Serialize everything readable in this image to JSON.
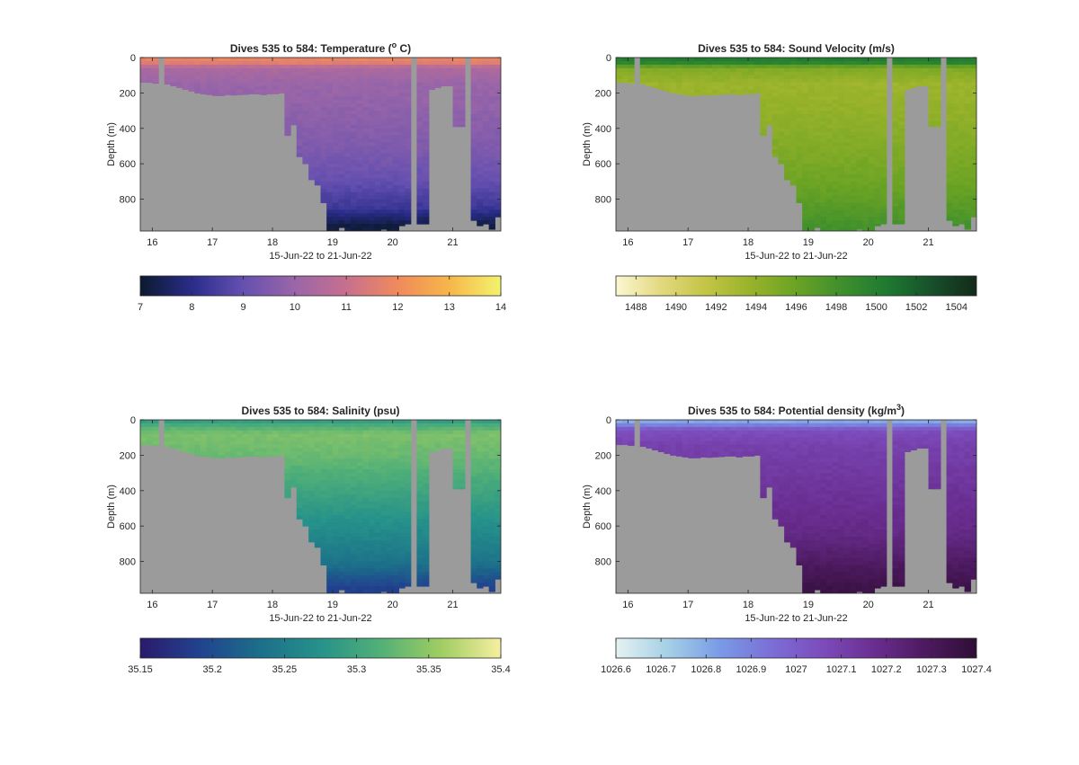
{
  "colors": {
    "land": "#9b9b9b",
    "axis": "#262626",
    "background": "#ffffff"
  },
  "chart_data": [
    {
      "type": "heatmap",
      "variable": "Temperature",
      "title": "Dives 535 to 584: Temperature (",
      "title_sup": "o",
      "title_end": " C)",
      "xlabel": "15-Jun-22 to 21-Jun-22",
      "ylabel": "Depth (m)",
      "xlim": [
        15.8,
        21.8
      ],
      "ylim": [
        0,
        980
      ],
      "y_reversed": true,
      "xticks": [
        16,
        17,
        18,
        19,
        20,
        21
      ],
      "yticks": [
        0,
        200,
        400,
        600,
        800
      ],
      "colorbar": {
        "min": 7,
        "max": 14,
        "ticks": [
          7,
          8,
          9,
          10,
          11,
          12,
          13,
          14
        ],
        "colormap": [
          "#0b1a2e",
          "#2a2c8a",
          "#6550b0",
          "#9a66a8",
          "#c76f8e",
          "#f08a5c",
          "#f7b64a",
          "#f3f36c"
        ]
      },
      "profile": [
        {
          "depth": 0,
          "value": 11.9
        },
        {
          "depth": 30,
          "value": 11.6
        },
        {
          "depth": 60,
          "value": 10.4
        },
        {
          "depth": 150,
          "value": 10.0
        },
        {
          "depth": 300,
          "value": 9.8
        },
        {
          "depth": 500,
          "value": 9.5
        },
        {
          "depth": 700,
          "value": 9.0
        },
        {
          "depth": 850,
          "value": 8.3
        },
        {
          "depth": 950,
          "value": 7.2
        }
      ]
    },
    {
      "type": "heatmap",
      "variable": "Sound Velocity",
      "title": "Dives 535 to 584: Sound Velocity (m/s)",
      "xlabel": "15-Jun-22 to 21-Jun-22",
      "ylabel": "Depth (m)",
      "xlim": [
        15.8,
        21.8
      ],
      "ylim": [
        0,
        980
      ],
      "y_reversed": true,
      "xticks": [
        16,
        17,
        18,
        19,
        20,
        21
      ],
      "yticks": [
        0,
        200,
        400,
        600,
        800
      ],
      "colorbar": {
        "min": 1487,
        "max": 1505,
        "ticks": [
          1488,
          1490,
          1492,
          1494,
          1496,
          1498,
          1500,
          1502,
          1504
        ],
        "colormap": [
          "#fbf7d0",
          "#e3d880",
          "#c2c545",
          "#98b22a",
          "#6aa324",
          "#3f8f2d",
          "#1f7a31",
          "#17502a",
          "#142a1a"
        ]
      },
      "profile": [
        {
          "depth": 0,
          "value": 1500.5
        },
        {
          "depth": 30,
          "value": 1499.5
        },
        {
          "depth": 60,
          "value": 1495.0
        },
        {
          "depth": 150,
          "value": 1493.5
        },
        {
          "depth": 300,
          "value": 1494.0
        },
        {
          "depth": 500,
          "value": 1494.8
        },
        {
          "depth": 700,
          "value": 1495.8
        },
        {
          "depth": 850,
          "value": 1497.0
        },
        {
          "depth": 950,
          "value": 1498.0
        }
      ]
    },
    {
      "type": "heatmap",
      "variable": "Salinity",
      "title": "Dives 535 to 584: Salinity (psu)",
      "xlabel": "15-Jun-22 to 21-Jun-22",
      "ylabel": "Depth (m)",
      "xlim": [
        15.8,
        21.8
      ],
      "ylim": [
        0,
        980
      ],
      "y_reversed": true,
      "xticks": [
        16,
        17,
        18,
        19,
        20,
        21
      ],
      "yticks": [
        0,
        200,
        400,
        600,
        800
      ],
      "colorbar": {
        "min": 35.15,
        "max": 35.4,
        "ticks": [
          35.15,
          35.2,
          35.25,
          35.3,
          35.35,
          35.4
        ],
        "tick_labels": [
          "35.15",
          "35.2",
          "35.25",
          "35.3",
          "35.35",
          "35.4"
        ],
        "colormap": [
          "#2a1a6c",
          "#21438f",
          "#1c6f8a",
          "#26928a",
          "#52b077",
          "#9fcd62",
          "#f6efa0"
        ]
      },
      "profile": [
        {
          "depth": 0,
          "value": 35.28
        },
        {
          "depth": 30,
          "value": 35.31
        },
        {
          "depth": 80,
          "value": 35.34
        },
        {
          "depth": 200,
          "value": 35.33
        },
        {
          "depth": 400,
          "value": 35.3
        },
        {
          "depth": 600,
          "value": 35.27
        },
        {
          "depth": 800,
          "value": 35.24
        },
        {
          "depth": 950,
          "value": 35.19
        }
      ]
    },
    {
      "type": "heatmap",
      "variable": "Potential density",
      "title": "Dives 535 to 584: Potential density (kg/m",
      "title_sup": "3",
      "title_end": ")",
      "xlabel": "15-Jun-22 to 21-Jun-22",
      "ylabel": "Depth (m)",
      "xlim": [
        15.8,
        21.8
      ],
      "ylim": [
        0,
        980
      ],
      "y_reversed": true,
      "xticks": [
        16,
        17,
        18,
        19,
        20,
        21
      ],
      "yticks": [
        0,
        200,
        400,
        600,
        800
      ],
      "colorbar": {
        "min": 1026.6,
        "max": 1027.4,
        "ticks": [
          1026.6,
          1026.7,
          1026.8,
          1026.9,
          1027,
          1027.1,
          1027.2,
          1027.3,
          1027.4
        ],
        "tick_labels": [
          "1026.6",
          "1026.7",
          "1026.8",
          "1026.9",
          "1027",
          "1027.1",
          "1027.2",
          "1027.3",
          "1027.4"
        ],
        "colormap": [
          "#e4f2f2",
          "#a6d0e6",
          "#7a9be6",
          "#7b6fd6",
          "#7d4cbc",
          "#6a2e91",
          "#4d1a5f",
          "#2f0e36"
        ]
      },
      "profile": [
        {
          "depth": 0,
          "value": 1026.75
        },
        {
          "depth": 30,
          "value": 1026.9
        },
        {
          "depth": 60,
          "value": 1027.05
        },
        {
          "depth": 150,
          "value": 1027.1
        },
        {
          "depth": 400,
          "value": 1027.15
        },
        {
          "depth": 650,
          "value": 1027.2
        },
        {
          "depth": 850,
          "value": 1027.3
        },
        {
          "depth": 950,
          "value": 1027.35
        }
      ]
    }
  ],
  "bathymetry": {
    "description_columns": "per-dive: time (day), maximum sampled depth (m)",
    "dives": [
      [
        15.8,
        140
      ],
      [
        15.9,
        140
      ],
      [
        16.0,
        145
      ],
      [
        16.1,
        0
      ],
      [
        16.2,
        150
      ],
      [
        16.3,
        160
      ],
      [
        16.4,
        170
      ],
      [
        16.5,
        180
      ],
      [
        16.6,
        190
      ],
      [
        16.7,
        200
      ],
      [
        16.8,
        205
      ],
      [
        16.9,
        210
      ],
      [
        17.0,
        215
      ],
      [
        17.1,
        215
      ],
      [
        17.2,
        210
      ],
      [
        17.3,
        212
      ],
      [
        17.4,
        210
      ],
      [
        17.5,
        208
      ],
      [
        17.6,
        205
      ],
      [
        17.7,
        205
      ],
      [
        17.8,
        210
      ],
      [
        17.9,
        205
      ],
      [
        18.0,
        205
      ],
      [
        18.1,
        200
      ],
      [
        18.2,
        440
      ],
      [
        18.3,
        380
      ],
      [
        18.4,
        560
      ],
      [
        18.5,
        600
      ],
      [
        18.6,
        690
      ],
      [
        18.7,
        720
      ],
      [
        18.8,
        820
      ],
      [
        18.9,
        980
      ],
      [
        19.0,
        980
      ],
      [
        19.1,
        960
      ],
      [
        19.2,
        980
      ],
      [
        19.3,
        980
      ],
      [
        19.4,
        980
      ],
      [
        19.5,
        980
      ],
      [
        19.6,
        980
      ],
      [
        19.7,
        980
      ],
      [
        19.8,
        970
      ],
      [
        19.9,
        980
      ],
      [
        20.0,
        980
      ],
      [
        20.1,
        950
      ],
      [
        20.2,
        940
      ],
      [
        20.3,
        0
      ],
      [
        20.4,
        940
      ],
      [
        20.5,
        940
      ],
      [
        20.6,
        180
      ],
      [
        20.7,
        170
      ],
      [
        20.8,
        160
      ],
      [
        20.9,
        160
      ],
      [
        21.0,
        390
      ],
      [
        21.1,
        390
      ],
      [
        21.2,
        0
      ],
      [
        21.3,
        920
      ],
      [
        21.4,
        950
      ],
      [
        21.5,
        940
      ],
      [
        21.6,
        970
      ],
      [
        21.7,
        900
      ]
    ]
  }
}
